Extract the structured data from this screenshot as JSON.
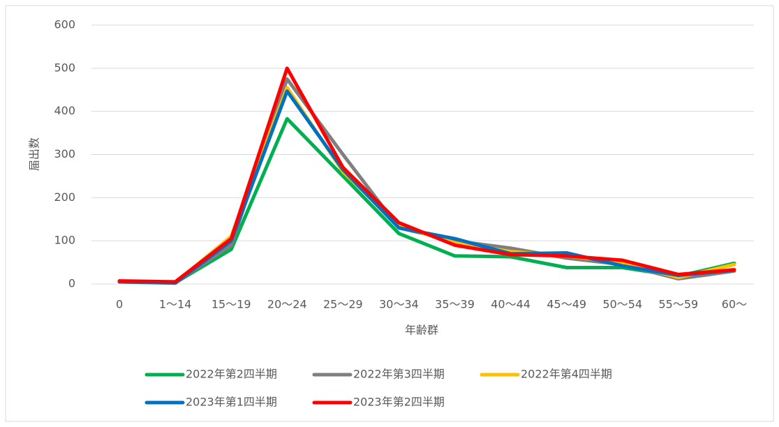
{
  "chart_data": {
    "type": "line",
    "x_label": "年齢群",
    "y_label": "届出数",
    "categories": [
      "0",
      "1～14",
      "15～19",
      "20～24",
      "25～29",
      "30～34",
      "35～39",
      "40～44",
      "45～49",
      "50～54",
      "55～59",
      "60～"
    ],
    "series": [
      {
        "name": "2022年第2四半期",
        "color": "#00b050",
        "values": [
          5,
          3,
          80,
          383,
          250,
          117,
          65,
          63,
          38,
          38,
          18,
          48
        ]
      },
      {
        "name": "2022年第3四半期",
        "color": "#7f7f7f",
        "values": [
          5,
          3,
          90,
          475,
          300,
          130,
          100,
          83,
          60,
          45,
          12,
          30
        ]
      },
      {
        "name": "2022年第4四半期",
        "color": "#ffc000",
        "values": [
          5,
          3,
          110,
          455,
          260,
          135,
          95,
          75,
          65,
          50,
          15,
          45
        ]
      },
      {
        "name": "2023年第1四半期",
        "color": "#0070c0",
        "values": [
          5,
          2,
          100,
          447,
          265,
          130,
          105,
          70,
          72,
          42,
          20,
          32
        ]
      },
      {
        "name": "2023年第2四半期",
        "color": "#ff0000",
        "values": [
          7,
          5,
          105,
          500,
          270,
          142,
          90,
          68,
          65,
          55,
          22,
          33
        ]
      }
    ],
    "ylim": [
      0,
      600
    ],
    "yticks": [
      0,
      100,
      200,
      300,
      400,
      500,
      600
    ],
    "grid": true,
    "legend": "bottom"
  }
}
